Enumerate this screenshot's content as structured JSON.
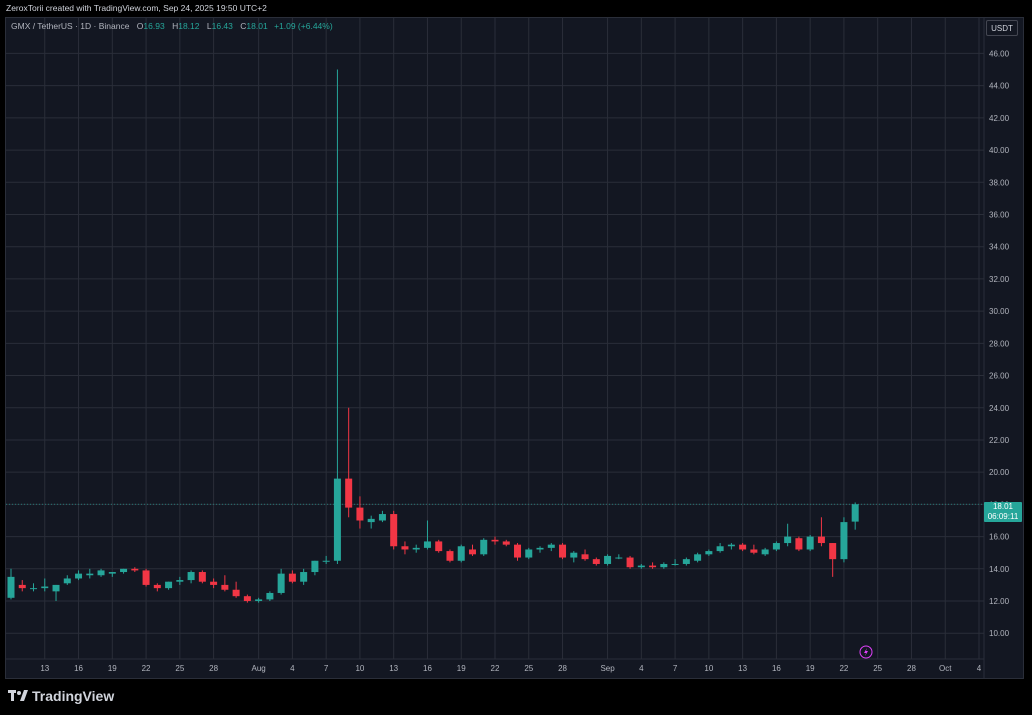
{
  "header": {
    "attribution": "ZeroxTorii created with TradingView.com, Sep 24, 2025 19:50 UTC+2"
  },
  "legend": {
    "symbol": "GMX / TetherUS · 1D · Binance",
    "o_label": "O",
    "o_value": "16.93",
    "h_label": "H",
    "h_value": "18.12",
    "l_label": "L",
    "l_value": "16.43",
    "c_label": "C",
    "c_value": "18.01",
    "change": "+1.09 (+6.44%)"
  },
  "currency_button": "USDT",
  "last_price": {
    "price": "18.01",
    "countdown": "06:09:11"
  },
  "footer": {
    "brand": "TradingView"
  },
  "colors": {
    "up": "#26a69a",
    "down": "#f23645",
    "background": "#131722",
    "grid": "#2a2e39"
  },
  "icons": {
    "lightning": "lightning-icon",
    "logo": "tradingview-logo-icon"
  },
  "chart_data": {
    "type": "candlestick",
    "symbol": "GMX/USDT",
    "interval": "1D",
    "y_ticks": [
      "10.00",
      "12.00",
      "14.00",
      "16.00",
      "18.00",
      "20.00",
      "22.00",
      "24.00",
      "26.00",
      "28.00",
      "30.00",
      "32.00",
      "34.00",
      "36.00",
      "38.00",
      "40.00",
      "42.00",
      "44.00",
      "46.00"
    ],
    "x_ticks": [
      {
        "label": "13",
        "date": "2025-07-13"
      },
      {
        "label": "16",
        "date": "2025-07-16"
      },
      {
        "label": "19",
        "date": "2025-07-19"
      },
      {
        "label": "22",
        "date": "2025-07-22"
      },
      {
        "label": "25",
        "date": "2025-07-25"
      },
      {
        "label": "28",
        "date": "2025-07-28"
      },
      {
        "label": "Aug",
        "date": "2025-08-01"
      },
      {
        "label": "4",
        "date": "2025-08-04"
      },
      {
        "label": "7",
        "date": "2025-08-07"
      },
      {
        "label": "10",
        "date": "2025-08-10"
      },
      {
        "label": "13",
        "date": "2025-08-13"
      },
      {
        "label": "16",
        "date": "2025-08-16"
      },
      {
        "label": "19",
        "date": "2025-08-19"
      },
      {
        "label": "22",
        "date": "2025-08-22"
      },
      {
        "label": "25",
        "date": "2025-08-25"
      },
      {
        "label": "28",
        "date": "2025-08-28"
      },
      {
        "label": "Sep",
        "date": "2025-09-01"
      },
      {
        "label": "4",
        "date": "2025-09-04"
      },
      {
        "label": "7",
        "date": "2025-09-07"
      },
      {
        "label": "10",
        "date": "2025-09-10"
      },
      {
        "label": "13",
        "date": "2025-09-13"
      },
      {
        "label": "16",
        "date": "2025-09-16"
      },
      {
        "label": "19",
        "date": "2025-09-19"
      },
      {
        "label": "22",
        "date": "2025-09-22"
      },
      {
        "label": "25",
        "date": "2025-09-25"
      },
      {
        "label": "28",
        "date": "2025-09-28"
      },
      {
        "label": "Oct",
        "date": "2025-10-01"
      },
      {
        "label": "4",
        "date": "2025-10-04"
      }
    ],
    "ylim": [
      8.4,
      48.2
    ],
    "xlim": [
      "2025-07-10",
      "2025-10-04"
    ],
    "candles": [
      {
        "d": "2025-07-10",
        "o": 12.2,
        "h": 14.0,
        "l": 12.1,
        "c": 13.5
      },
      {
        "d": "2025-07-11",
        "o": 13.0,
        "h": 13.3,
        "l": 12.6,
        "c": 12.8
      },
      {
        "d": "2025-07-12",
        "o": 12.8,
        "h": 13.1,
        "l": 12.6,
        "c": 12.8
      },
      {
        "d": "2025-07-13",
        "o": 12.8,
        "h": 13.4,
        "l": 12.6,
        "c": 12.9
      },
      {
        "d": "2025-07-14",
        "o": 12.6,
        "h": 13.0,
        "l": 12.0,
        "c": 13.0
      },
      {
        "d": "2025-07-15",
        "o": 13.1,
        "h": 13.6,
        "l": 13.0,
        "c": 13.4
      },
      {
        "d": "2025-07-16",
        "o": 13.4,
        "h": 13.9,
        "l": 13.3,
        "c": 13.7
      },
      {
        "d": "2025-07-17",
        "o": 13.6,
        "h": 14.0,
        "l": 13.4,
        "c": 13.7
      },
      {
        "d": "2025-07-18",
        "o": 13.6,
        "h": 14.0,
        "l": 13.5,
        "c": 13.9
      },
      {
        "d": "2025-07-19",
        "o": 13.7,
        "h": 13.8,
        "l": 13.5,
        "c": 13.8
      },
      {
        "d": "2025-07-20",
        "o": 13.8,
        "h": 14.0,
        "l": 13.7,
        "c": 14.0
      },
      {
        "d": "2025-07-21",
        "o": 14.0,
        "h": 14.1,
        "l": 13.8,
        "c": 13.9
      },
      {
        "d": "2025-07-22",
        "o": 13.9,
        "h": 14.0,
        "l": 12.9,
        "c": 13.0
      },
      {
        "d": "2025-07-23",
        "o": 13.0,
        "h": 13.1,
        "l": 12.6,
        "c": 12.8
      },
      {
        "d": "2025-07-24",
        "o": 12.8,
        "h": 13.2,
        "l": 12.7,
        "c": 13.2
      },
      {
        "d": "2025-07-25",
        "o": 13.2,
        "h": 13.5,
        "l": 13.0,
        "c": 13.3
      },
      {
        "d": "2025-07-26",
        "o": 13.3,
        "h": 13.9,
        "l": 13.1,
        "c": 13.8
      },
      {
        "d": "2025-07-27",
        "o": 13.8,
        "h": 13.9,
        "l": 13.1,
        "c": 13.2
      },
      {
        "d": "2025-07-28",
        "o": 13.2,
        "h": 13.4,
        "l": 12.8,
        "c": 13.0
      },
      {
        "d": "2025-07-29",
        "o": 13.0,
        "h": 13.6,
        "l": 12.6,
        "c": 12.7
      },
      {
        "d": "2025-07-30",
        "o": 12.7,
        "h": 13.2,
        "l": 12.2,
        "c": 12.3
      },
      {
        "d": "2025-07-31",
        "o": 12.3,
        "h": 12.4,
        "l": 11.9,
        "c": 12.0
      },
      {
        "d": "2025-08-01",
        "o": 12.0,
        "h": 12.2,
        "l": 11.9,
        "c": 12.1
      },
      {
        "d": "2025-08-02",
        "o": 12.1,
        "h": 12.6,
        "l": 12.0,
        "c": 12.5
      },
      {
        "d": "2025-08-03",
        "o": 12.5,
        "h": 14.0,
        "l": 12.4,
        "c": 13.7
      },
      {
        "d": "2025-08-04",
        "o": 13.7,
        "h": 13.9,
        "l": 13.1,
        "c": 13.2
      },
      {
        "d": "2025-08-05",
        "o": 13.2,
        "h": 14.0,
        "l": 13.0,
        "c": 13.8
      },
      {
        "d": "2025-08-06",
        "o": 13.8,
        "h": 14.5,
        "l": 13.6,
        "c": 14.5
      },
      {
        "d": "2025-08-07",
        "o": 14.5,
        "h": 14.8,
        "l": 14.3,
        "c": 14.5
      },
      {
        "d": "2025-08-08",
        "o": 14.5,
        "h": 45.0,
        "l": 14.3,
        "c": 19.6
      },
      {
        "d": "2025-08-09",
        "o": 19.6,
        "h": 24.0,
        "l": 17.2,
        "c": 17.8
      },
      {
        "d": "2025-08-10",
        "o": 17.8,
        "h": 18.5,
        "l": 16.5,
        "c": 17.0
      },
      {
        "d": "2025-08-11",
        "o": 16.9,
        "h": 17.3,
        "l": 16.5,
        "c": 17.1
      },
      {
        "d": "2025-08-12",
        "o": 17.0,
        "h": 17.6,
        "l": 16.9,
        "c": 17.4
      },
      {
        "d": "2025-08-13",
        "o": 17.4,
        "h": 17.6,
        "l": 15.2,
        "c": 15.4
      },
      {
        "d": "2025-08-14",
        "o": 15.4,
        "h": 15.7,
        "l": 14.9,
        "c": 15.2
      },
      {
        "d": "2025-08-15",
        "o": 15.2,
        "h": 15.5,
        "l": 15.0,
        "c": 15.3
      },
      {
        "d": "2025-08-16",
        "o": 15.3,
        "h": 17.0,
        "l": 15.2,
        "c": 15.7
      },
      {
        "d": "2025-08-17",
        "o": 15.7,
        "h": 15.8,
        "l": 15.0,
        "c": 15.1
      },
      {
        "d": "2025-08-18",
        "o": 15.1,
        "h": 15.2,
        "l": 14.4,
        "c": 14.5
      },
      {
        "d": "2025-08-19",
        "o": 14.5,
        "h": 15.5,
        "l": 14.4,
        "c": 15.4
      },
      {
        "d": "2025-08-20",
        "o": 15.2,
        "h": 15.5,
        "l": 14.8,
        "c": 14.9
      },
      {
        "d": "2025-08-21",
        "o": 14.9,
        "h": 15.9,
        "l": 14.8,
        "c": 15.8
      },
      {
        "d": "2025-08-22",
        "o": 15.8,
        "h": 16.0,
        "l": 15.5,
        "c": 15.7
      },
      {
        "d": "2025-08-23",
        "o": 15.7,
        "h": 15.8,
        "l": 15.4,
        "c": 15.5
      },
      {
        "d": "2025-08-24",
        "o": 15.5,
        "h": 15.6,
        "l": 14.5,
        "c": 14.7
      },
      {
        "d": "2025-08-25",
        "o": 14.7,
        "h": 15.3,
        "l": 14.6,
        "c": 15.2
      },
      {
        "d": "2025-08-26",
        "o": 15.2,
        "h": 15.4,
        "l": 15.0,
        "c": 15.3
      },
      {
        "d": "2025-08-27",
        "o": 15.3,
        "h": 15.6,
        "l": 15.1,
        "c": 15.5
      },
      {
        "d": "2025-08-28",
        "o": 15.5,
        "h": 15.6,
        "l": 14.6,
        "c": 14.7
      },
      {
        "d": "2025-08-29",
        "o": 14.7,
        "h": 15.1,
        "l": 14.4,
        "c": 15.0
      },
      {
        "d": "2025-08-30",
        "o": 14.9,
        "h": 15.2,
        "l": 14.5,
        "c": 14.6
      },
      {
        "d": "2025-08-31",
        "o": 14.6,
        "h": 14.7,
        "l": 14.2,
        "c": 14.3
      },
      {
        "d": "2025-09-01",
        "o": 14.3,
        "h": 14.9,
        "l": 14.2,
        "c": 14.8
      },
      {
        "d": "2025-09-02",
        "o": 14.7,
        "h": 14.9,
        "l": 14.6,
        "c": 14.7
      },
      {
        "d": "2025-09-03",
        "o": 14.7,
        "h": 14.8,
        "l": 14.0,
        "c": 14.1
      },
      {
        "d": "2025-09-04",
        "o": 14.1,
        "h": 14.3,
        "l": 14.0,
        "c": 14.2
      },
      {
        "d": "2025-09-05",
        "o": 14.2,
        "h": 14.4,
        "l": 14.0,
        "c": 14.1
      },
      {
        "d": "2025-09-06",
        "o": 14.1,
        "h": 14.4,
        "l": 14.0,
        "c": 14.3
      },
      {
        "d": "2025-09-07",
        "o": 14.3,
        "h": 14.6,
        "l": 14.2,
        "c": 14.3
      },
      {
        "d": "2025-09-08",
        "o": 14.3,
        "h": 14.7,
        "l": 14.2,
        "c": 14.6
      },
      {
        "d": "2025-09-09",
        "o": 14.5,
        "h": 15.0,
        "l": 14.4,
        "c": 14.9
      },
      {
        "d": "2025-09-10",
        "o": 14.9,
        "h": 15.2,
        "l": 14.8,
        "c": 15.1
      },
      {
        "d": "2025-09-11",
        "o": 15.1,
        "h": 15.6,
        "l": 15.0,
        "c": 15.4
      },
      {
        "d": "2025-09-12",
        "o": 15.4,
        "h": 15.6,
        "l": 15.2,
        "c": 15.5
      },
      {
        "d": "2025-09-13",
        "o": 15.5,
        "h": 15.6,
        "l": 15.1,
        "c": 15.2
      },
      {
        "d": "2025-09-14",
        "o": 15.2,
        "h": 15.5,
        "l": 14.9,
        "c": 15.0
      },
      {
        "d": "2025-09-15",
        "o": 14.9,
        "h": 15.3,
        "l": 14.8,
        "c": 15.2
      },
      {
        "d": "2025-09-16",
        "o": 15.2,
        "h": 15.7,
        "l": 15.1,
        "c": 15.6
      },
      {
        "d": "2025-09-17",
        "o": 15.6,
        "h": 16.8,
        "l": 15.4,
        "c": 16.0
      },
      {
        "d": "2025-09-18",
        "o": 15.9,
        "h": 16.0,
        "l": 15.1,
        "c": 15.2
      },
      {
        "d": "2025-09-19",
        "o": 15.2,
        "h": 16.1,
        "l": 15.1,
        "c": 16.0
      },
      {
        "d": "2025-09-20",
        "o": 16.0,
        "h": 17.2,
        "l": 15.4,
        "c": 15.6
      },
      {
        "d": "2025-09-21",
        "o": 15.6,
        "h": 15.6,
        "l": 13.5,
        "c": 14.6
      },
      {
        "d": "2025-09-22",
        "o": 14.6,
        "h": 17.2,
        "l": 14.4,
        "c": 16.9
      },
      {
        "d": "2025-09-23",
        "o": 16.93,
        "h": 18.12,
        "l": 16.43,
        "c": 18.01
      }
    ],
    "last_price": 18.01
  }
}
